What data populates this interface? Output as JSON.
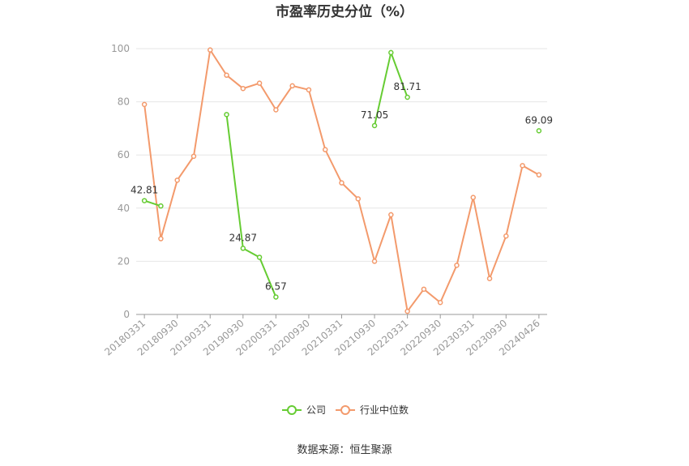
{
  "chart_data": {
    "type": "line",
    "title": "市盈率历史分位（%）",
    "xlabel": "",
    "ylabel": "",
    "ylim": [
      0,
      100
    ],
    "yticks": [
      0,
      20,
      40,
      60,
      80,
      100
    ],
    "grid": true,
    "legend_position": "bottom",
    "categories": [
      "20180331",
      "20180630",
      "20180930",
      "20181231",
      "20190331",
      "20190630",
      "20190930",
      "20191231",
      "20200331",
      "20200630",
      "20200930",
      "20201231",
      "20210331",
      "20210630",
      "20210930",
      "20211231",
      "20220331",
      "20220630",
      "20220930",
      "20221231",
      "20230331",
      "20230630",
      "20230930",
      "20231231",
      "20240426"
    ],
    "xtick_labels": [
      "20180331",
      "20180930",
      "20190331",
      "20190930",
      "20200331",
      "20200930",
      "20210331",
      "20210930",
      "20220331",
      "20220930",
      "20230331",
      "20230930",
      "20240426"
    ],
    "series": [
      {
        "name": "公司",
        "color": "#66cc33",
        "values": [
          42.81,
          40.8,
          null,
          null,
          null,
          75.2,
          24.87,
          21.5,
          6.57,
          null,
          null,
          null,
          null,
          null,
          71.05,
          98.5,
          81.71,
          null,
          null,
          null,
          null,
          null,
          null,
          null,
          69.09
        ],
        "labels": {
          "0": "42.81",
          "6": "24.87",
          "8": "6.57",
          "14": "71.05",
          "16": "81.71",
          "24": "69.09"
        }
      },
      {
        "name": "行业中位数",
        "color": "#f39a6c",
        "values": [
          79,
          28.5,
          50.5,
          59.5,
          99.5,
          90,
          85,
          87,
          77,
          86,
          84.5,
          62,
          49.5,
          43.5,
          20,
          37.5,
          1.2,
          9.5,
          4.5,
          18.5,
          44,
          13.5,
          29.5,
          56,
          52.5
        ]
      }
    ]
  },
  "source_text": "数据来源：恒生聚源"
}
